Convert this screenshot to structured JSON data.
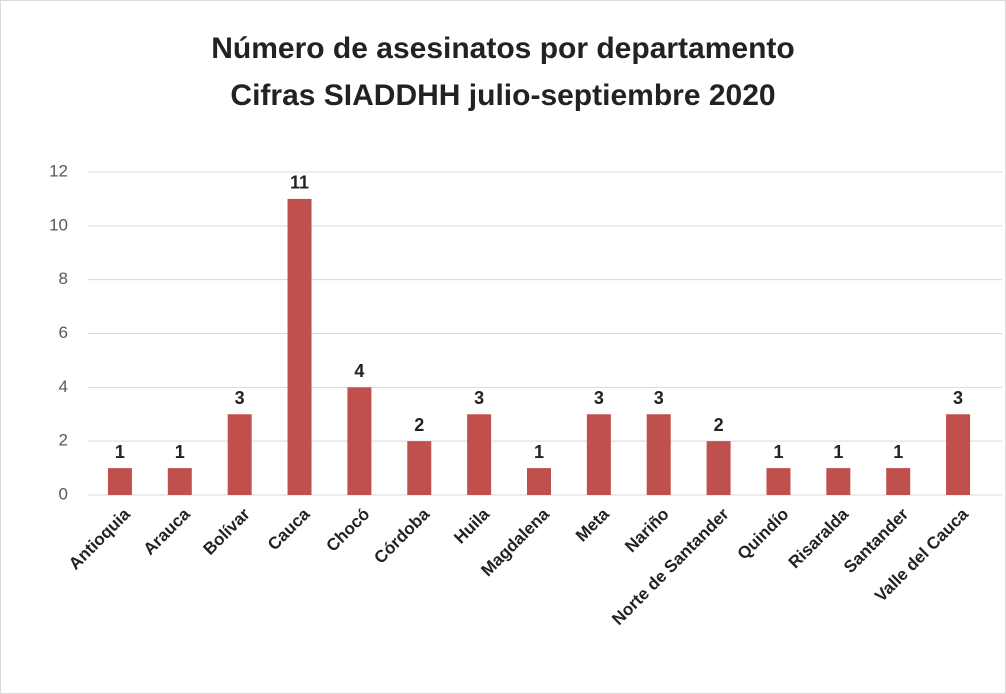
{
  "chart_data": {
    "type": "bar",
    "title": "Número de asesinatos por departamento",
    "subtitle": "Cifras SIADDHH julio-septiembre 2020",
    "categories": [
      "Antioquia",
      "Arauca",
      "Bolívar",
      "Cauca",
      "Chocó",
      "Córdoba",
      "Huila",
      "Magdalena",
      "Meta",
      "Nariño",
      "Norte de Santander",
      "Quindío",
      "Risaralda",
      "Santander",
      "Valle del Cauca"
    ],
    "values": [
      1,
      1,
      3,
      11,
      4,
      2,
      3,
      1,
      3,
      3,
      2,
      1,
      1,
      1,
      3
    ],
    "color": "#c0504d",
    "ylim": [
      0,
      12
    ],
    "yticks": [
      0,
      2,
      4,
      6,
      8,
      10,
      12
    ],
    "grid": true
  }
}
